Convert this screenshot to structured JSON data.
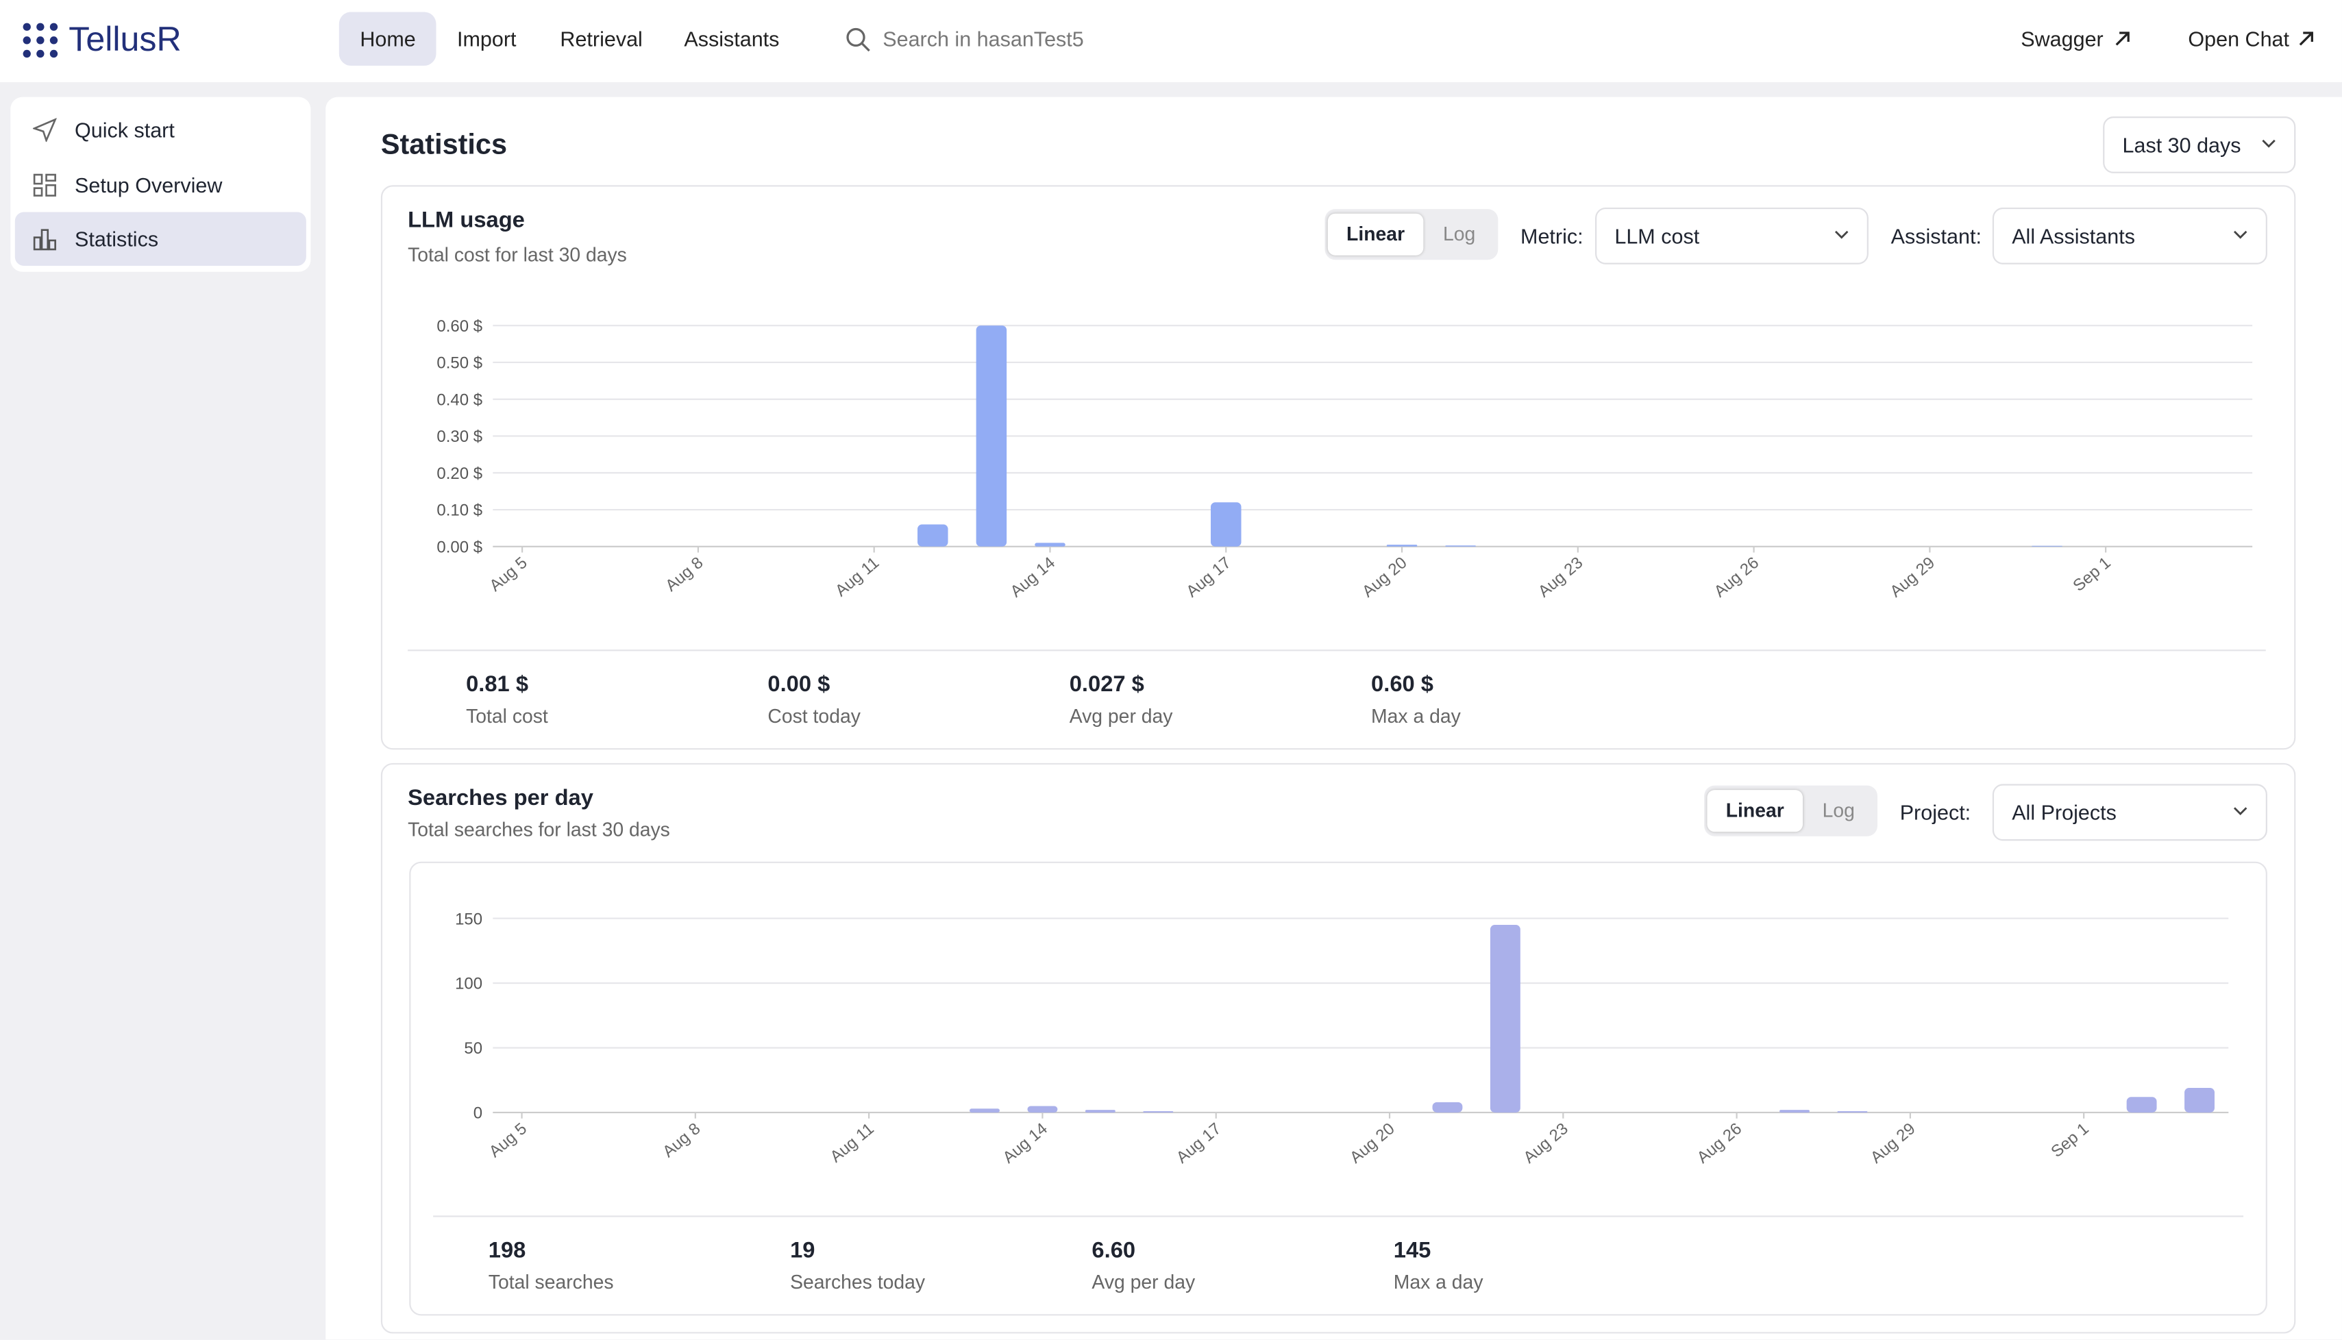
{
  "nav": {
    "brand": "TellusR",
    "items": [
      "Home",
      "Import",
      "Retrieval",
      "Assistants"
    ],
    "search_placeholder": "Search in hasanTest5",
    "links": [
      "Swagger",
      "Open Chat"
    ]
  },
  "sidebar": {
    "items": [
      "Quick start",
      "Setup Overview",
      "Statistics"
    ]
  },
  "page": {
    "title": "Statistics",
    "range": "Last 30 days"
  },
  "chart_data": [
    {
      "type": "bar",
      "title": "LLM usage",
      "subtitle": "Total cost for last 30 days",
      "scale_options": [
        "Linear",
        "Log"
      ],
      "log_scale": false,
      "controls": [
        {
          "label": "Metric:",
          "value": "LLM cost"
        },
        {
          "label": "Assistant:",
          "value": "All Assistants"
        }
      ],
      "categories": [
        "Aug 5",
        null,
        null,
        "Aug 8",
        null,
        null,
        "Aug 11",
        null,
        null,
        "Aug 14",
        null,
        null,
        "Aug 17",
        null,
        null,
        "Aug 20",
        null,
        null,
        "Aug 23",
        null,
        null,
        "Aug 26",
        null,
        null,
        "Aug 29",
        null,
        null,
        "Sep 1",
        null,
        null
      ],
      "values": [
        0,
        0,
        0,
        0,
        0,
        0,
        0,
        0.06,
        0.6,
        0.01,
        0,
        0,
        0.12,
        0,
        0,
        0.005,
        0.003,
        0,
        0,
        0,
        0,
        0,
        0,
        0,
        0,
        0,
        0.002,
        0,
        0,
        0
      ],
      "color": "#92acf4",
      "grid": true,
      "ylim": [
        0,
        0.6
      ],
      "yticks": [
        {
          "value": 0,
          "label": "0.00 $"
        },
        {
          "value": 0.1,
          "label": "0.10 $"
        },
        {
          "value": 0.2,
          "label": "0.20 $"
        },
        {
          "value": 0.3,
          "label": "0.30 $"
        },
        {
          "value": 0.4,
          "label": "0.40 $"
        },
        {
          "value": 0.5,
          "label": "0.50 $"
        },
        {
          "value": 0.6,
          "label": "0.60 $"
        }
      ],
      "stats": [
        {
          "value": "0.81 $",
          "label": "Total cost"
        },
        {
          "value": "0.00 $",
          "label": "Cost today"
        },
        {
          "value": "0.027 $",
          "label": "Avg per day"
        },
        {
          "value": "0.60 $",
          "label": "Max a day"
        }
      ]
    },
    {
      "type": "bar",
      "title": "Searches per day",
      "subtitle": "Total searches for last 30 days",
      "scale_options": [
        "Linear",
        "Log"
      ],
      "log_scale": false,
      "controls": [
        {
          "label": "Project:",
          "value": "All Projects"
        }
      ],
      "categories": [
        "Aug 5",
        null,
        null,
        "Aug 8",
        null,
        null,
        "Aug 11",
        null,
        null,
        "Aug 14",
        null,
        null,
        "Aug 17",
        null,
        null,
        "Aug 20",
        null,
        null,
        "Aug 23",
        null,
        null,
        "Aug 26",
        null,
        null,
        "Aug 29",
        null,
        null,
        "Sep 1",
        null,
        null
      ],
      "values": [
        0,
        0,
        0,
        0,
        0,
        0,
        0,
        0,
        3,
        5,
        2,
        1,
        0,
        0,
        0,
        0,
        8,
        145,
        0,
        0,
        0,
        0,
        2,
        1,
        0,
        0,
        0,
        0,
        12,
        19
      ],
      "color": "#aab0ea",
      "grid": true,
      "ylim": [
        0,
        150
      ],
      "yticks": [
        0,
        50,
        100,
        150
      ],
      "stats": [
        {
          "value": "198",
          "label": "Total searches"
        },
        {
          "value": "19",
          "label": "Searches today"
        },
        {
          "value": "6.60",
          "label": "Avg per day"
        },
        {
          "value": "145",
          "label": "Max a day"
        }
      ]
    }
  ]
}
